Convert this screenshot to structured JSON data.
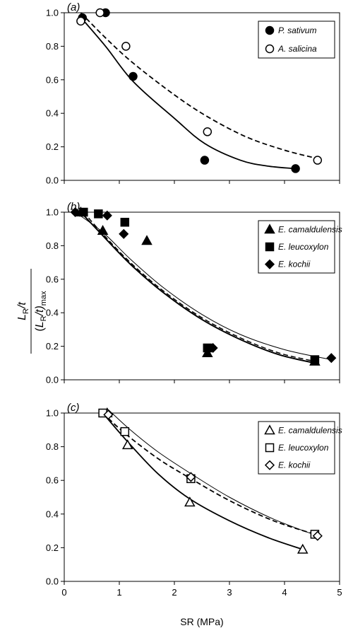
{
  "figure": {
    "xlabel": "SR (MPa)",
    "ylabel": {
      "num_main": "L",
      "num_sub": "R",
      "num_tail": "/t",
      "den_open": "(",
      "den_main": "L",
      "den_sub": "R",
      "den_tail": "/t)",
      "den_sub2": "max"
    }
  },
  "chart_data": [
    {
      "type": "scatter",
      "panel_label": "(a)",
      "xlim": [
        0,
        5
      ],
      "ylim": [
        0,
        1
      ],
      "xticks": [
        0,
        1,
        2,
        3,
        4,
        5
      ],
      "yticks": [
        "0.0",
        "0.2",
        "0.4",
        "0.6",
        "0.8",
        "1.0"
      ],
      "show_xticklabels": false,
      "legend_position": "top-right",
      "series": [
        {
          "name": "P. sativum",
          "marker": "circle-filled",
          "points": [
            [
              0.33,
              0.97
            ],
            [
              0.75,
              1.0
            ],
            [
              1.25,
              0.62
            ],
            [
              2.55,
              0.12
            ],
            [
              4.2,
              0.07
            ]
          ],
          "fit": {
            "style": "solid",
            "width": 1.8,
            "x_range": [
              0.28,
              4.2
            ],
            "points": [
              [
                0.28,
                0.98
              ],
              [
                0.75,
                0.8
              ],
              [
                1.25,
                0.59
              ],
              [
                2.0,
                0.37
              ],
              [
                2.55,
                0.22
              ],
              [
                3.2,
                0.12
              ],
              [
                3.7,
                0.085
              ],
              [
                4.2,
                0.07
              ]
            ]
          }
        },
        {
          "name": "A. salicina",
          "marker": "circle-open",
          "points": [
            [
              0.3,
              0.95
            ],
            [
              0.65,
              1.0
            ],
            [
              1.12,
              0.8
            ],
            [
              2.6,
              0.29
            ],
            [
              4.6,
              0.12
            ]
          ],
          "fit": {
            "style": "dashed",
            "width": 1.8,
            "x_range": [
              0.3,
              4.6
            ],
            "points": [
              [
                0.3,
                1.0
              ],
              [
                0.75,
                0.85
              ],
              [
                1.25,
                0.7
              ],
              [
                2.0,
                0.51
              ],
              [
                2.6,
                0.38
              ],
              [
                3.3,
                0.26
              ],
              [
                4.0,
                0.18
              ],
              [
                4.6,
                0.13
              ]
            ]
          }
        }
      ]
    },
    {
      "type": "scatter",
      "panel_label": "(b)",
      "xlim": [
        0,
        5
      ],
      "ylim": [
        0,
        1
      ],
      "xticks": [
        0,
        1,
        2,
        3,
        4,
        5
      ],
      "yticks": [
        "0.0",
        "0.2",
        "0.4",
        "0.6",
        "0.8",
        "1.0"
      ],
      "show_xticklabels": false,
      "legend_position": "top-right",
      "series": [
        {
          "name": "E. camaldulensis",
          "marker": "triangle-filled",
          "points": [
            [
              0.3,
              1.0
            ],
            [
              0.7,
              0.89
            ],
            [
              1.5,
              0.83
            ],
            [
              2.6,
              0.16
            ],
            [
              4.55,
              0.11
            ]
          ],
          "fit": {
            "style": "solid",
            "width": 2.0,
            "x_range": [
              0.3,
              4.55
            ],
            "points": [
              [
                0.3,
                1.0
              ],
              [
                0.7,
                0.86
              ],
              [
                1.2,
                0.69
              ],
              [
                1.8,
                0.52
              ],
              [
                2.5,
                0.36
              ],
              [
                3.2,
                0.24
              ],
              [
                3.9,
                0.15
              ],
              [
                4.55,
                0.1
              ]
            ]
          }
        },
        {
          "name": "E. leucoxylon",
          "marker": "square-filled",
          "points": [
            [
              0.35,
              1.0
            ],
            [
              0.62,
              0.99
            ],
            [
              1.1,
              0.94
            ],
            [
              2.6,
              0.19
            ],
            [
              4.55,
              0.12
            ]
          ],
          "fit": {
            "style": "dashed",
            "width": 1.5,
            "x_range": [
              0.35,
              4.55
            ],
            "points": [
              [
                0.35,
                1.0
              ],
              [
                0.7,
                0.87
              ],
              [
                1.2,
                0.7
              ],
              [
                1.8,
                0.53
              ],
              [
                2.5,
                0.37
              ],
              [
                3.2,
                0.25
              ],
              [
                3.9,
                0.16
              ],
              [
                4.55,
                0.11
              ]
            ]
          }
        },
        {
          "name": "E. kochii",
          "marker": "diamond-filled",
          "points": [
            [
              0.2,
              1.0
            ],
            [
              0.78,
              0.98
            ],
            [
              1.08,
              0.87
            ],
            [
              2.7,
              0.19
            ],
            [
              4.85,
              0.13
            ]
          ],
          "fit": {
            "style": "thin",
            "width": 1.0,
            "x_range": [
              0.2,
              4.85
            ],
            "points": [
              [
                0.2,
                1.0
              ],
              [
                0.7,
                0.88
              ],
              [
                1.2,
                0.72
              ],
              [
                1.8,
                0.55
              ],
              [
                2.5,
                0.39
              ],
              [
                3.2,
                0.27
              ],
              [
                4.0,
                0.18
              ],
              [
                4.85,
                0.12
              ]
            ]
          }
        }
      ]
    },
    {
      "type": "scatter",
      "panel_label": "(c)",
      "xlim": [
        0,
        5
      ],
      "ylim": [
        0,
        1
      ],
      "xticks": [
        0,
        1,
        2,
        3,
        4,
        5
      ],
      "yticks": [
        "0.0",
        "0.2",
        "0.4",
        "0.6",
        "0.8",
        "1.0"
      ],
      "xticklabels": [
        "0",
        "1",
        "2",
        "3",
        "4",
        "5"
      ],
      "show_xticklabels": true,
      "legend_position": "top-right",
      "series": [
        {
          "name": "E. camaldulensis",
          "marker": "triangle-open",
          "points": [
            [
              0.78,
              1.0
            ],
            [
              1.15,
              0.81
            ],
            [
              2.28,
              0.47
            ],
            [
              4.33,
              0.19
            ]
          ],
          "fit": {
            "style": "solid",
            "width": 1.8,
            "x_range": [
              0.7,
              4.33
            ],
            "points": [
              [
                0.7,
                1.0
              ],
              [
                1.15,
                0.83
              ],
              [
                1.7,
                0.64
              ],
              [
                2.28,
                0.49
              ],
              [
                3.0,
                0.36
              ],
              [
                3.7,
                0.26
              ],
              [
                4.33,
                0.19
              ]
            ]
          }
        },
        {
          "name": "E. leucoxylon",
          "marker": "square-open",
          "points": [
            [
              0.7,
              1.0
            ],
            [
              1.1,
              0.89
            ],
            [
              2.3,
              0.61
            ],
            [
              4.55,
              0.28
            ]
          ],
          "fit": {
            "style": "dashed",
            "width": 1.8,
            "x_range": [
              0.7,
              4.55
            ],
            "points": [
              [
                0.7,
                1.0
              ],
              [
                1.1,
                0.88
              ],
              [
                1.7,
                0.73
              ],
              [
                2.3,
                0.61
              ],
              [
                3.0,
                0.48
              ],
              [
                3.8,
                0.36
              ],
              [
                4.55,
                0.28
              ]
            ]
          }
        },
        {
          "name": "E. kochii",
          "marker": "diamond-open",
          "points": [
            [
              0.8,
              0.99
            ],
            [
              2.3,
              0.62
            ],
            [
              4.6,
              0.27
            ]
          ],
          "fit": {
            "style": "thin",
            "width": 1.0,
            "x_range": [
              0.8,
              4.6
            ],
            "points": [
              [
                0.8,
                1.02
              ],
              [
                1.2,
                0.9
              ],
              [
                1.7,
                0.77
              ],
              [
                2.3,
                0.64
              ],
              [
                3.0,
                0.5
              ],
              [
                3.8,
                0.37
              ],
              [
                4.6,
                0.27
              ]
            ]
          }
        }
      ]
    }
  ]
}
